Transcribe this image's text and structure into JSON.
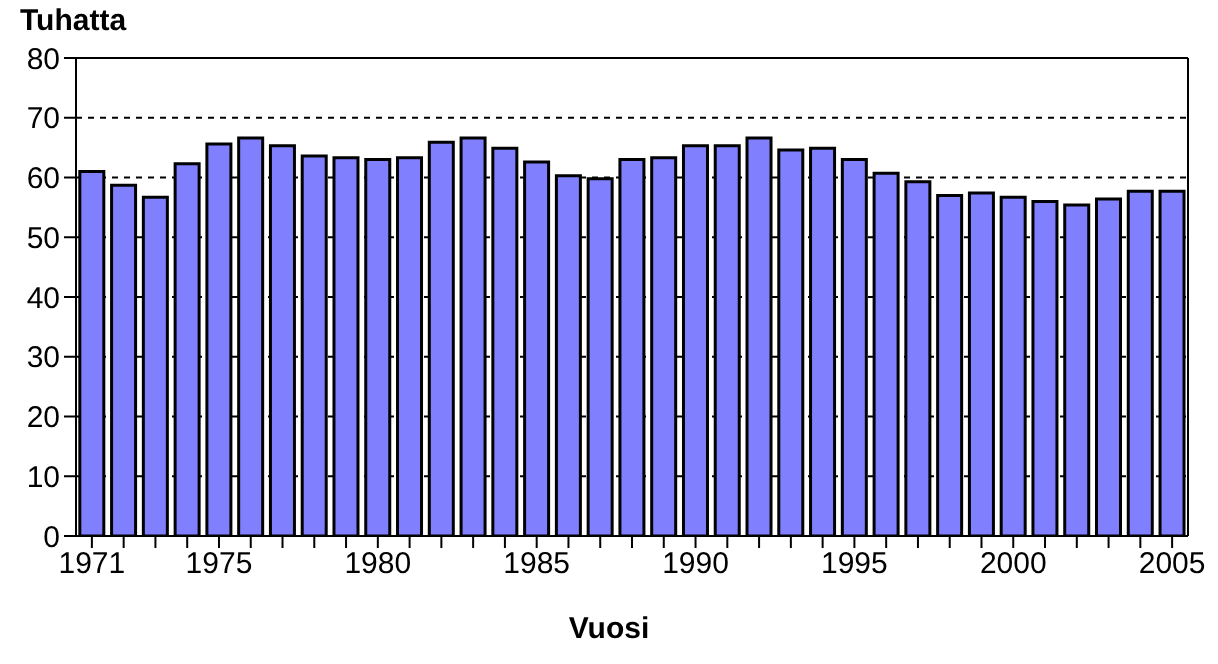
{
  "chart_data": {
    "type": "bar",
    "ylabel": "Tuhatta",
    "xlabel": "Vuosi",
    "categories": [
      "1971",
      null,
      null,
      null,
      "1975",
      null,
      null,
      null,
      null,
      "1980",
      null,
      null,
      null,
      null,
      "1985",
      null,
      null,
      null,
      null,
      "1990",
      null,
      null,
      null,
      null,
      "1995",
      null,
      null,
      null,
      null,
      "2000",
      null,
      null,
      null,
      null,
      "2005"
    ],
    "values": [
      61.0,
      58.7,
      56.7,
      62.3,
      65.6,
      66.6,
      65.3,
      63.6,
      63.3,
      63.0,
      63.3,
      65.9,
      66.6,
      64.9,
      62.6,
      60.3,
      59.8,
      63.0,
      63.3,
      65.3,
      65.3,
      66.6,
      64.6,
      64.9,
      63.0,
      60.7,
      59.3,
      57.0,
      57.4,
      56.7,
      56.0,
      55.4,
      56.4,
      57.7,
      57.7
    ],
    "color": "#8080ff",
    "ylim": [
      0,
      80
    ],
    "yticks": [
      0,
      10,
      20,
      30,
      40,
      50,
      60,
      70,
      80
    ],
    "grid": "y"
  }
}
